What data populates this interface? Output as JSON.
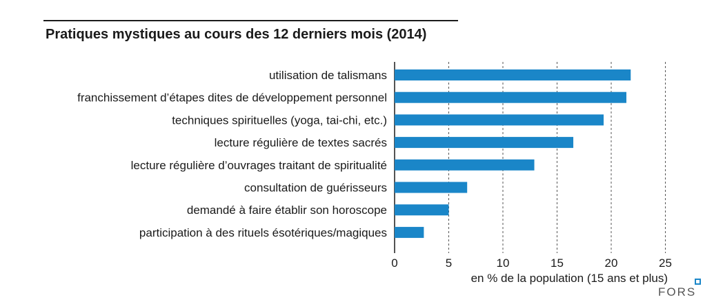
{
  "chart_data": {
    "type": "bar",
    "orientation": "horizontal",
    "title": "Pratiques mystiques au cours des 12 derniers mois (2014)",
    "categories": [
      "utilisation de talismans",
      "franchissement d’étapes dites de développement personnel",
      "techniques spirituelles (yoga, tai-chi, etc.)",
      "lecture régulière de textes sacrés",
      "lecture régulière d’ouvrages traitant de spiritualité",
      "consultation de guérisseurs",
      "demandé à faire établir son horoscope",
      "participation à des rituels ésotériques/magiques"
    ],
    "values": [
      21.8,
      21.4,
      19.3,
      16.5,
      12.9,
      6.7,
      5.0,
      2.7
    ],
    "xlabel": "en % de la population (15 ans et plus)",
    "ylabel": "",
    "xlim": [
      0,
      25
    ],
    "xticks": [
      0,
      5,
      10,
      15,
      20,
      25
    ],
    "grid": "vertical dashed",
    "bar_color": "#1a86c8"
  },
  "branding": {
    "logo_text": "FORS",
    "accent_color": "#1a86c8"
  }
}
